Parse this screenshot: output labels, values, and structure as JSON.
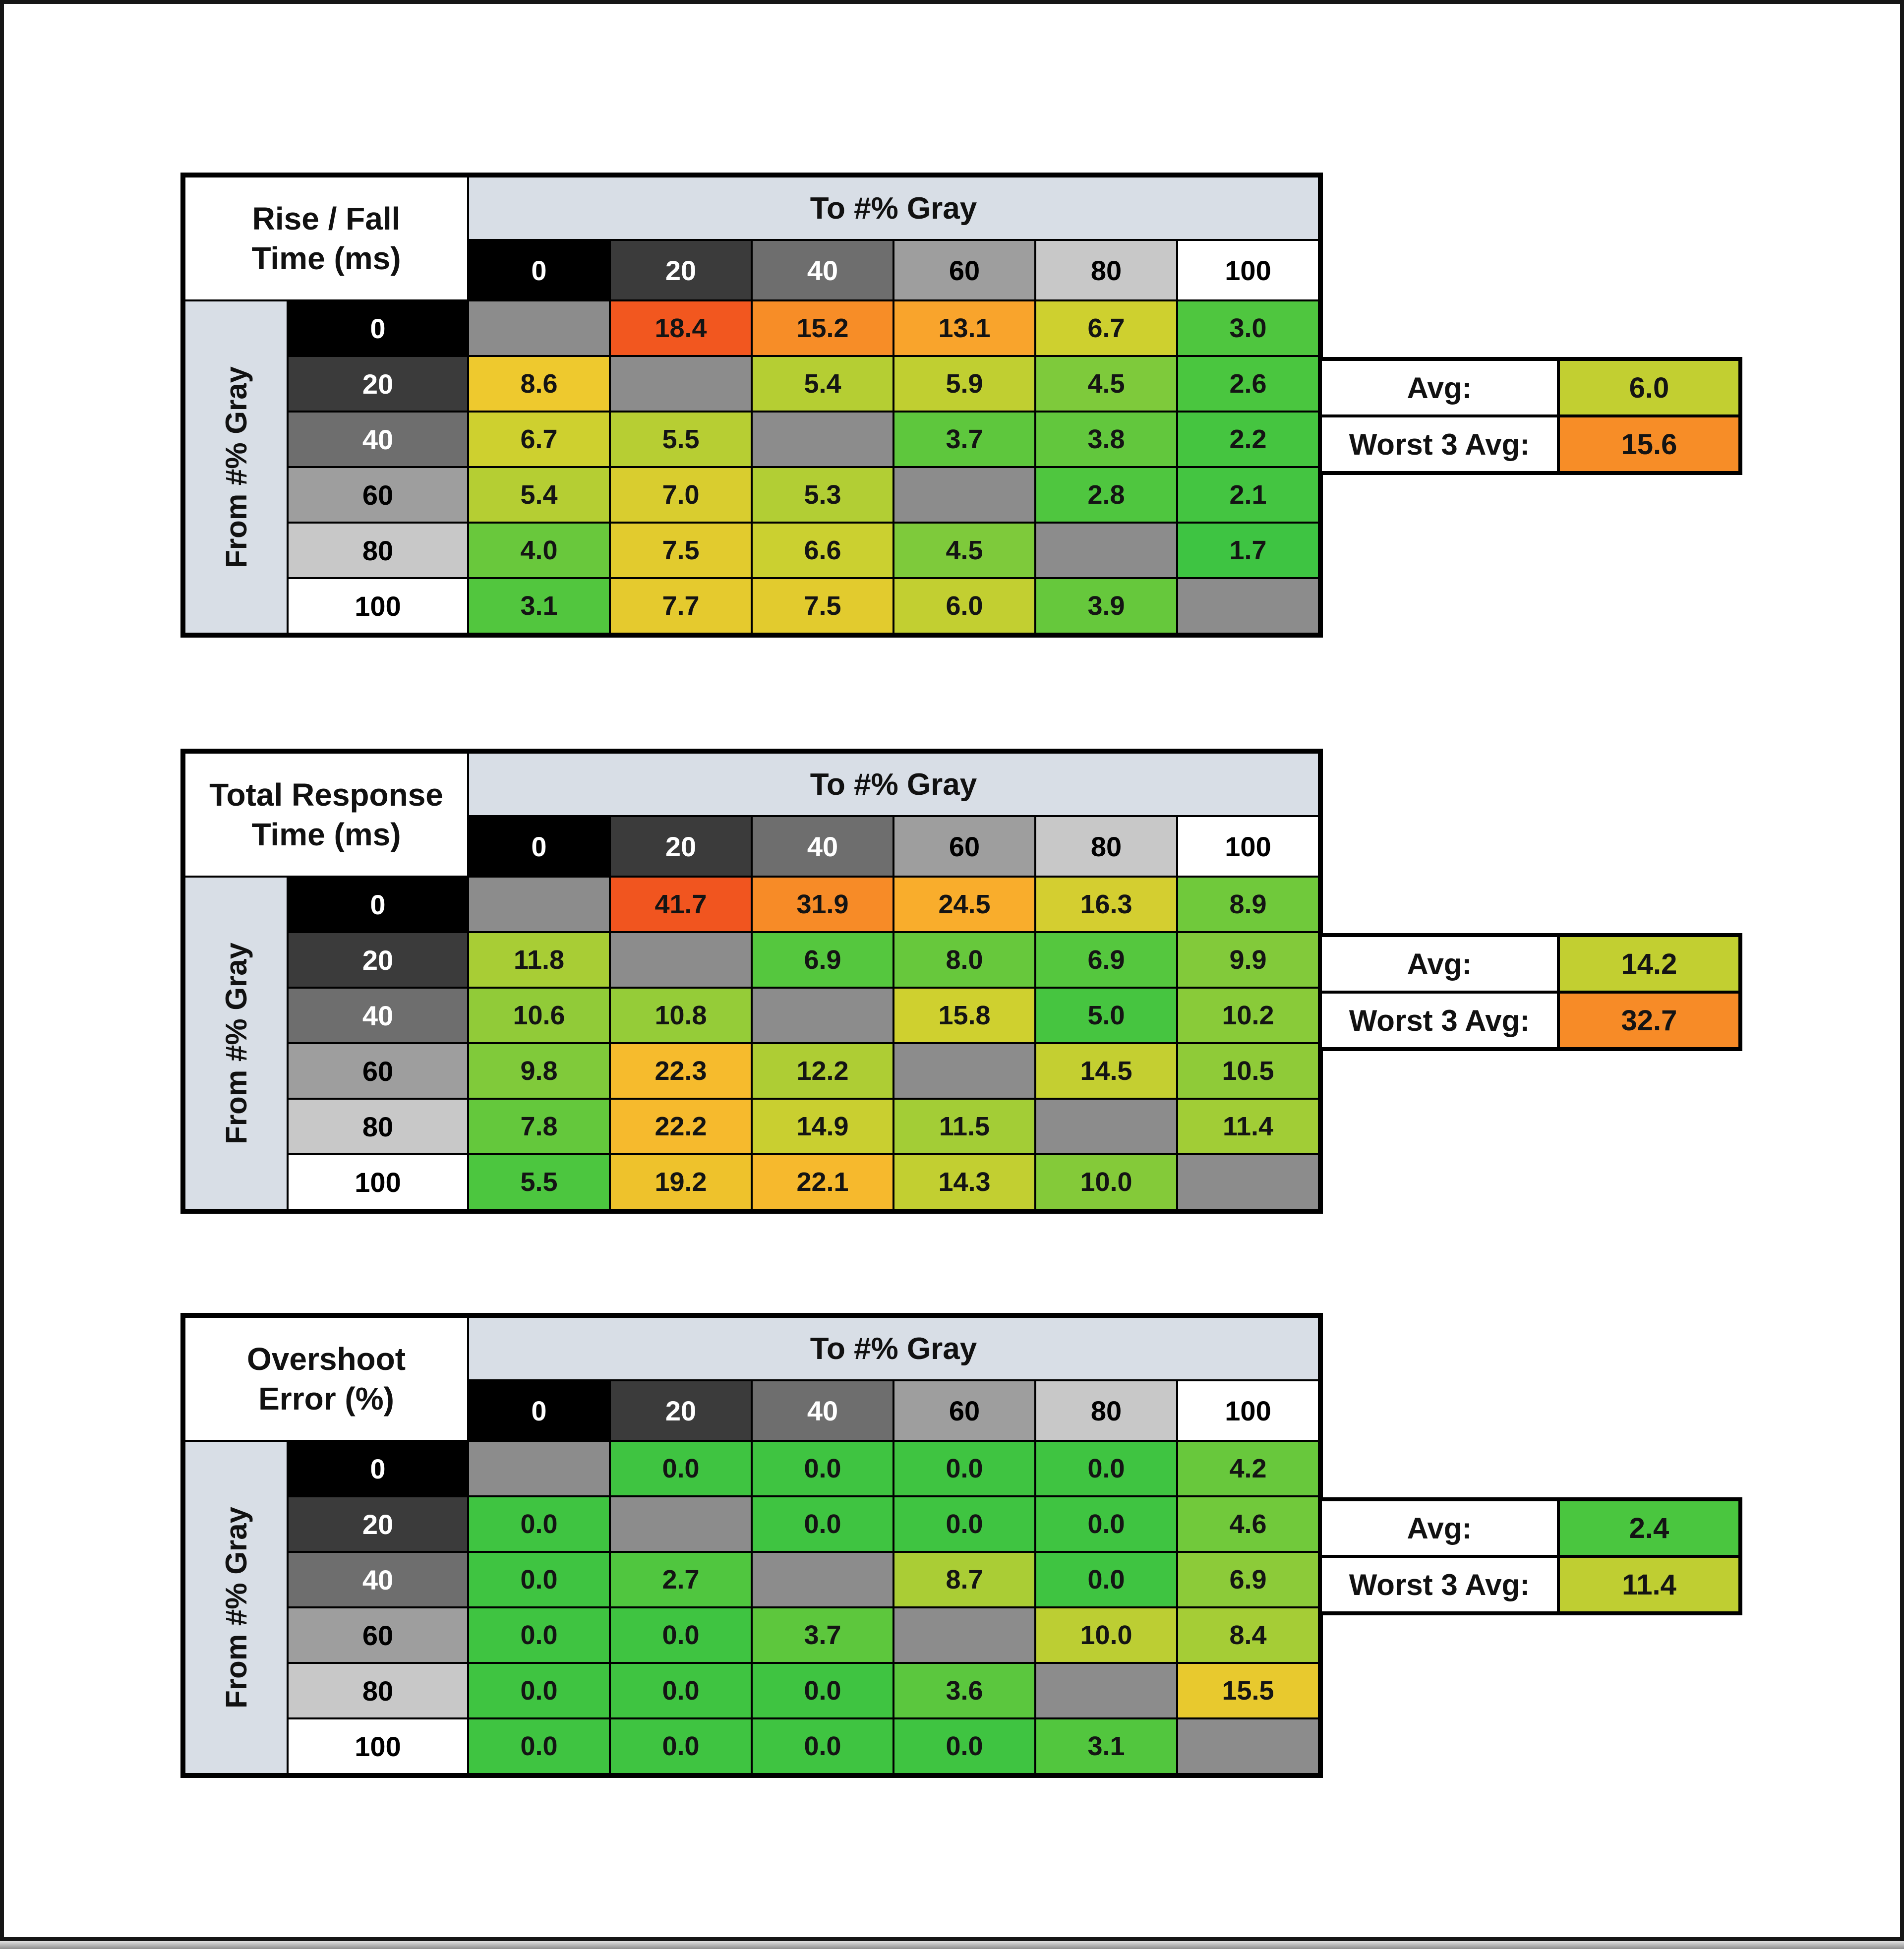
{
  "page": {
    "background": "#ffffff",
    "frame_border": "#161616",
    "bottom_strip_top": "#e2e2e2",
    "bottom_strip_bottom": "#8d8d8d"
  },
  "style": {
    "band_bg": "#d8dee6",
    "diag_color": "#8c8c8c",
    "grid_line_color": "#000000",
    "header_bg": [
      "#000000",
      "#3b3b3b",
      "#6e6e6e",
      "#9e9e9e",
      "#c8c8c8",
      "#ffffff"
    ],
    "header_fg": [
      "#ffffff",
      "#ffffff",
      "#ffffff",
      "#000000",
      "#000000",
      "#000000"
    ]
  },
  "chart_data": [
    {
      "type": "heatmap",
      "title_line1": "Rise / Fall",
      "title_line2": "Time (ms)",
      "col_axis_label": "To #% Gray",
      "row_axis_label": "From #% Gray",
      "categories": [
        "0",
        "20",
        "40",
        "60",
        "80",
        "100"
      ],
      "rows": [
        {
          "from": "0",
          "values": [
            null,
            18.4,
            15.2,
            13.1,
            6.7,
            3.0
          ],
          "colors": [
            null,
            "#f2571f",
            "#f78d27",
            "#f9a42c",
            "#ced02f",
            "#4fc63f"
          ]
        },
        {
          "from": "20",
          "values": [
            8.6,
            null,
            5.4,
            5.9,
            4.5,
            2.6
          ],
          "colors": [
            "#eec92e",
            null,
            "#b5ce33",
            "#c0cf31",
            "#7eca3b",
            "#4ac63f"
          ]
        },
        {
          "from": "40",
          "values": [
            6.7,
            5.5,
            null,
            3.7,
            3.8,
            2.2
          ],
          "colors": [
            "#ced02f",
            "#b7ce33",
            null,
            "#5ec73d",
            "#62c73d",
            "#45c540"
          ]
        },
        {
          "from": "60",
          "values": [
            5.4,
            7.0,
            5.3,
            null,
            2.8,
            2.1
          ],
          "colors": [
            "#b5ce33",
            "#d9cd2f",
            "#b2ce34",
            null,
            "#4fc63f",
            "#44c541"
          ]
        },
        {
          "from": "80",
          "values": [
            4.0,
            7.5,
            6.6,
            4.5,
            null,
            1.7
          ],
          "colors": [
            "#69c83c",
            "#e2cb2e",
            "#cbd030",
            "#7eca3b",
            null,
            "#3ec442"
          ]
        },
        {
          "from": "100",
          "values": [
            3.1,
            7.7,
            7.5,
            6.0,
            3.9,
            null
          ],
          "colors": [
            "#52c63e",
            "#e5ca2e",
            "#e2cb2e",
            "#c2cf31",
            "#66c83c",
            null
          ]
        }
      ],
      "stats": {
        "avg_label": "Avg:",
        "avg_value": "6.0",
        "avg_color": "#c2cf31",
        "worst_label": "Worst 3 Avg:",
        "worst_value": "15.6",
        "worst_color": "#f78d27"
      }
    },
    {
      "type": "heatmap",
      "title_line1": "Total Response",
      "title_line2": "Time (ms)",
      "col_axis_label": "To #% Gray",
      "row_axis_label": "From #% Gray",
      "categories": [
        "0",
        "20",
        "40",
        "60",
        "80",
        "100"
      ],
      "rows": [
        {
          "from": "0",
          "values": [
            null,
            41.7,
            31.9,
            24.5,
            16.3,
            8.9
          ],
          "colors": [
            null,
            "#f1551f",
            "#f78b27",
            "#f9ad2c",
            "#d4ce30",
            "#70c93b"
          ]
        },
        {
          "from": "20",
          "values": [
            11.8,
            null,
            6.9,
            8.0,
            6.9,
            9.9
          ],
          "colors": [
            "#a8cd35",
            null,
            "#55c73e",
            "#67c83c",
            "#55c73e",
            "#82ca3a"
          ]
        },
        {
          "from": "40",
          "values": [
            10.6,
            10.8,
            null,
            15.8,
            5.0,
            10.2
          ],
          "colors": [
            "#91cb38",
            "#95cc38",
            null,
            "#cfd02f",
            "#46c540",
            "#89cb39"
          ]
        },
        {
          "from": "60",
          "values": [
            9.8,
            22.3,
            12.2,
            null,
            14.5,
            10.5
          ],
          "colors": [
            "#80ca3a",
            "#f6bb2d",
            "#aecd34",
            null,
            "#c4cf31",
            "#8fcb38"
          ]
        },
        {
          "from": "80",
          "values": [
            7.8,
            22.2,
            14.9,
            11.5,
            null,
            11.4
          ],
          "colors": [
            "#64c83c",
            "#f6ba2d",
            "#c9cf30",
            "#a3cd36",
            null,
            "#a1cd36"
          ]
        },
        {
          "from": "100",
          "values": [
            5.5,
            19.2,
            22.1,
            14.3,
            10.0,
            null
          ],
          "colors": [
            "#4cc63f",
            "#eec22c",
            "#f6b92d",
            "#c2cf31",
            "#84ca39",
            null
          ]
        }
      ],
      "stats": {
        "avg_label": "Avg:",
        "avg_value": "14.2",
        "avg_color": "#c2cf31",
        "worst_label": "Worst 3 Avg:",
        "worst_value": "32.7",
        "worst_color": "#f78b27"
      }
    },
    {
      "type": "heatmap",
      "title_line1": "Overshoot",
      "title_line2": "Error (%)",
      "col_axis_label": "To #% Gray",
      "row_axis_label": "From #% Gray",
      "categories": [
        "0",
        "20",
        "40",
        "60",
        "80",
        "100"
      ],
      "rows": [
        {
          "from": "0",
          "values": [
            null,
            0.0,
            0.0,
            0.0,
            0.0,
            4.2
          ],
          "colors": [
            null,
            "#3fc441",
            "#3fc441",
            "#3fc441",
            "#3fc441",
            "#68c83c"
          ]
        },
        {
          "from": "20",
          "values": [
            0.0,
            null,
            0.0,
            0.0,
            0.0,
            4.6
          ],
          "colors": [
            "#3fc441",
            null,
            "#3fc441",
            "#3fc441",
            "#3fc441",
            "#71c93b"
          ]
        },
        {
          "from": "40",
          "values": [
            0.0,
            2.7,
            null,
            8.7,
            0.0,
            6.9
          ],
          "colors": [
            "#3fc441",
            "#50c63f",
            null,
            "#aacd35",
            "#3fc441",
            "#8ccb39"
          ]
        },
        {
          "from": "60",
          "values": [
            0.0,
            0.0,
            3.7,
            null,
            10.0,
            8.4
          ],
          "colors": [
            "#3fc441",
            "#3fc441",
            "#5dc73d",
            null,
            "#bcce33",
            "#a5cd36"
          ]
        },
        {
          "from": "80",
          "values": [
            0.0,
            0.0,
            0.0,
            3.6,
            null,
            15.5
          ],
          "colors": [
            "#3fc441",
            "#3fc441",
            "#3fc441",
            "#5bc73e",
            null,
            "#e8c92e"
          ]
        },
        {
          "from": "100",
          "values": [
            0.0,
            0.0,
            0.0,
            0.0,
            3.1,
            null
          ],
          "colors": [
            "#3fc441",
            "#3fc441",
            "#3fc441",
            "#3fc441",
            "#52c63e",
            null
          ]
        }
      ],
      "stats": {
        "avg_label": "Avg:",
        "avg_value": "2.4",
        "avg_color": "#4ac63f",
        "worst_label": "Worst 3 Avg:",
        "worst_value": "11.4",
        "worst_color": "#bfce32"
      }
    }
  ]
}
